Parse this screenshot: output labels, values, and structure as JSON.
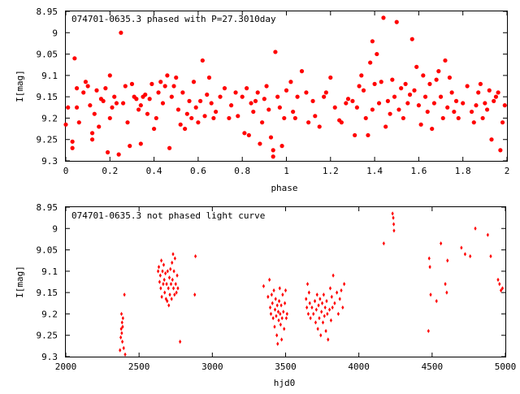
{
  "chart_data": [
    {
      "type": "scatter",
      "title": "074701-0635.3 phased with P=27.3010day",
      "xlabel": "phase",
      "ylabel": "I[mag]",
      "xlim": [
        0,
        2
      ],
      "ylim": [
        8.95,
        9.3
      ],
      "y_inverted": true,
      "grid": false,
      "marker": "filled-circle",
      "color": "#ff0000",
      "x_ticks": [
        "0",
        "0.2",
        "0.4",
        "0.6",
        "0.8",
        "1",
        "1.2",
        "1.4",
        "1.6",
        "1.8",
        "2"
      ],
      "y_ticks": [
        "8.95",
        "9",
        "9.05",
        "9.1",
        "9.15",
        "9.2",
        "9.25",
        "9.3"
      ],
      "points": [
        [
          0.0,
          9.215
        ],
        [
          0.01,
          9.175
        ],
        [
          0.03,
          9.255
        ],
        [
          0.03,
          9.27
        ],
        [
          0.04,
          9.06
        ],
        [
          0.05,
          9.13
        ],
        [
          0.05,
          9.175
        ],
        [
          0.06,
          9.21
        ],
        [
          0.08,
          9.14
        ],
        [
          0.09,
          9.115
        ],
        [
          0.1,
          9.125
        ],
        [
          0.11,
          9.17
        ],
        [
          0.12,
          9.235
        ],
        [
          0.12,
          9.25
        ],
        [
          0.13,
          9.19
        ],
        [
          0.14,
          9.135
        ],
        [
          0.15,
          9.22
        ],
        [
          0.16,
          9.155
        ],
        [
          0.17,
          9.16
        ],
        [
          0.18,
          9.13
        ],
        [
          0.19,
          9.28
        ],
        [
          0.2,
          9.1
        ],
        [
          0.2,
          9.2
        ],
        [
          0.21,
          9.175
        ],
        [
          0.22,
          9.15
        ],
        [
          0.23,
          9.165
        ],
        [
          0.24,
          9.285
        ],
        [
          0.25,
          9.0
        ],
        [
          0.26,
          9.165
        ],
        [
          0.27,
          9.125
        ],
        [
          0.28,
          9.21
        ],
        [
          0.29,
          9.265
        ],
        [
          0.3,
          9.12
        ],
        [
          0.31,
          9.15
        ],
        [
          0.32,
          9.155
        ],
        [
          0.33,
          9.18
        ],
        [
          0.34,
          9.26
        ],
        [
          0.34,
          9.17
        ],
        [
          0.35,
          9.15
        ],
        [
          0.36,
          9.145
        ],
        [
          0.37,
          9.19
        ],
        [
          0.38,
          9.155
        ],
        [
          0.39,
          9.12
        ],
        [
          0.4,
          9.225
        ],
        [
          0.41,
          9.2
        ],
        [
          0.42,
          9.14
        ],
        [
          0.43,
          9.115
        ],
        [
          0.44,
          9.165
        ],
        [
          0.45,
          9.125
        ],
        [
          0.46,
          9.1
        ],
        [
          0.47,
          9.27
        ],
        [
          0.48,
          9.15
        ],
        [
          0.49,
          9.125
        ],
        [
          0.5,
          9.105
        ],
        [
          0.51,
          9.18
        ],
        [
          0.52,
          9.215
        ],
        [
          0.53,
          9.14
        ],
        [
          0.54,
          9.225
        ],
        [
          0.55,
          9.19
        ],
        [
          0.56,
          9.16
        ],
        [
          0.57,
          9.2
        ],
        [
          0.58,
          9.115
        ],
        [
          0.59,
          9.175
        ],
        [
          0.6,
          9.21
        ],
        [
          0.61,
          9.16
        ],
        [
          0.62,
          9.065
        ],
        [
          0.63,
          9.195
        ],
        [
          0.64,
          9.145
        ],
        [
          0.65,
          9.105
        ],
        [
          0.66,
          9.165
        ],
        [
          0.67,
          9.2
        ],
        [
          0.68,
          9.185
        ],
        [
          0.7,
          9.15
        ],
        [
          0.72,
          9.13
        ],
        [
          0.74,
          9.2
        ],
        [
          0.75,
          9.17
        ],
        [
          0.77,
          9.14
        ],
        [
          0.78,
          9.195
        ],
        [
          0.8,
          9.15
        ],
        [
          0.81,
          9.235
        ],
        [
          0.82,
          9.13
        ],
        [
          0.83,
          9.24
        ],
        [
          0.84,
          9.165
        ],
        [
          0.85,
          9.185
        ],
        [
          0.86,
          9.16
        ],
        [
          0.87,
          9.14
        ],
        [
          0.88,
          9.26
        ],
        [
          0.89,
          9.21
        ],
        [
          0.9,
          9.155
        ],
        [
          0.91,
          9.125
        ],
        [
          0.92,
          9.18
        ],
        [
          0.93,
          9.245
        ],
        [
          0.94,
          9.29
        ],
        [
          0.94,
          9.275
        ],
        [
          0.95,
          9.045
        ],
        [
          0.96,
          9.15
        ],
        [
          0.97,
          9.175
        ],
        [
          0.98,
          9.265
        ],
        [
          0.99,
          9.2
        ],
        [
          1.0,
          9.135
        ],
        [
          1.02,
          9.115
        ],
        [
          1.03,
          9.185
        ],
        [
          1.04,
          9.2
        ],
        [
          1.05,
          9.15
        ],
        [
          1.07,
          9.09
        ],
        [
          1.09,
          9.14
        ],
        [
          1.1,
          9.21
        ],
        [
          1.12,
          9.16
        ],
        [
          1.13,
          9.195
        ],
        [
          1.15,
          9.22
        ],
        [
          1.17,
          9.15
        ],
        [
          1.18,
          9.14
        ],
        [
          1.2,
          9.105
        ],
        [
          1.22,
          9.175
        ],
        [
          1.24,
          9.205
        ],
        [
          1.25,
          9.21
        ],
        [
          1.27,
          9.165
        ],
        [
          1.28,
          9.155
        ],
        [
          1.3,
          9.16
        ],
        [
          1.31,
          9.24
        ],
        [
          1.32,
          9.175
        ],
        [
          1.33,
          9.125
        ],
        [
          1.34,
          9.1
        ],
        [
          1.35,
          9.135
        ],
        [
          1.36,
          9.2
        ],
        [
          1.37,
          9.24
        ],
        [
          1.38,
          9.07
        ],
        [
          1.39,
          9.02
        ],
        [
          1.39,
          9.18
        ],
        [
          1.4,
          9.12
        ],
        [
          1.41,
          9.05
        ],
        [
          1.42,
          9.165
        ],
        [
          1.43,
          9.115
        ],
        [
          1.44,
          8.965
        ],
        [
          1.45,
          9.22
        ],
        [
          1.46,
          9.16
        ],
        [
          1.47,
          9.19
        ],
        [
          1.48,
          9.11
        ],
        [
          1.49,
          9.15
        ],
        [
          1.5,
          8.975
        ],
        [
          1.51,
          9.18
        ],
        [
          1.52,
          9.13
        ],
        [
          1.53,
          9.2
        ],
        [
          1.54,
          9.12
        ],
        [
          1.55,
          9.165
        ],
        [
          1.56,
          9.145
        ],
        [
          1.57,
          9.015
        ],
        [
          1.58,
          9.135
        ],
        [
          1.59,
          9.08
        ],
        [
          1.6,
          9.17
        ],
        [
          1.61,
          9.215
        ],
        [
          1.62,
          9.1
        ],
        [
          1.63,
          9.15
        ],
        [
          1.64,
          9.185
        ],
        [
          1.65,
          9.12
        ],
        [
          1.66,
          9.225
        ],
        [
          1.67,
          9.165
        ],
        [
          1.68,
          9.11
        ],
        [
          1.69,
          9.09
        ],
        [
          1.7,
          9.15
        ],
        [
          1.71,
          9.2
        ],
        [
          1.72,
          9.065
        ],
        [
          1.73,
          9.175
        ],
        [
          1.74,
          9.105
        ],
        [
          1.75,
          9.14
        ],
        [
          1.76,
          9.185
        ],
        [
          1.77,
          9.16
        ],
        [
          1.78,
          9.2
        ],
        [
          1.8,
          9.165
        ],
        [
          1.82,
          9.125
        ],
        [
          1.84,
          9.185
        ],
        [
          1.85,
          9.21
        ],
        [
          1.86,
          9.17
        ],
        [
          1.87,
          9.14
        ],
        [
          1.88,
          9.12
        ],
        [
          1.89,
          9.2
        ],
        [
          1.9,
          9.165
        ],
        [
          1.91,
          9.18
        ],
        [
          1.92,
          9.135
        ],
        [
          1.93,
          9.25
        ],
        [
          1.94,
          9.16
        ],
        [
          1.95,
          9.15
        ],
        [
          1.96,
          9.14
        ],
        [
          1.97,
          9.275
        ],
        [
          1.98,
          9.21
        ],
        [
          1.99,
          9.17
        ]
      ]
    },
    {
      "type": "scatter",
      "title": "074701-0635.3 not phased light curve",
      "xlabel": "hjd0",
      "ylabel": "I[mag]",
      "xlim": [
        2000,
        5000
      ],
      "ylim": [
        8.95,
        9.3
      ],
      "y_inverted": true,
      "grid": false,
      "marker": "small-diamond",
      "color": "#ff0000",
      "x_ticks": [
        "2000",
        "2500",
        "3000",
        "3500",
        "4000",
        "4500",
        "5000"
      ],
      "y_ticks": [
        "8.95",
        "9",
        "9.05",
        "9.1",
        "9.15",
        "9.2",
        "9.25",
        "9.3"
      ],
      "points": [
        [
          2370,
          9.285
        ],
        [
          2375,
          9.255
        ],
        [
          2378,
          9.235
        ],
        [
          2380,
          9.2
        ],
        [
          2382,
          9.245
        ],
        [
          2384,
          9.22
        ],
        [
          2386,
          9.265
        ],
        [
          2388,
          9.23
        ],
        [
          2390,
          9.21
        ],
        [
          2395,
          9.28
        ],
        [
          2400,
          9.155
        ],
        [
          2405,
          9.295
        ],
        [
          2630,
          9.1
        ],
        [
          2635,
          9.09
        ],
        [
          2640,
          9.125
        ],
        [
          2645,
          9.11
        ],
        [
          2648,
          9.14
        ],
        [
          2652,
          9.075
        ],
        [
          2655,
          9.16
        ],
        [
          2660,
          9.1
        ],
        [
          2665,
          9.13
        ],
        [
          2668,
          9.085
        ],
        [
          2672,
          9.12
        ],
        [
          2675,
          9.15
        ],
        [
          2680,
          9.105
        ],
        [
          2684,
          9.165
        ],
        [
          2688,
          9.13
        ],
        [
          2692,
          9.17
        ],
        [
          2695,
          9.1
        ],
        [
          2700,
          9.14
        ],
        [
          2703,
          9.18
        ],
        [
          2707,
          9.115
        ],
        [
          2710,
          9.155
        ],
        [
          2714,
          9.095
        ],
        [
          2718,
          9.13
        ],
        [
          2722,
          9.165
        ],
        [
          2725,
          9.08
        ],
        [
          2728,
          9.12
        ],
        [
          2732,
          9.06
        ],
        [
          2735,
          9.14
        ],
        [
          2738,
          9.1
        ],
        [
          2742,
          9.155
        ],
        [
          2745,
          9.07
        ],
        [
          2750,
          9.13
        ],
        [
          2755,
          9.15
        ],
        [
          2760,
          9.11
        ],
        [
          2765,
          9.14
        ],
        [
          2780,
          9.265
        ],
        [
          2880,
          9.155
        ],
        [
          2885,
          9.065
        ],
        [
          3350,
          9.135
        ],
        [
          3380,
          9.16
        ],
        [
          3390,
          9.12
        ],
        [
          3395,
          9.185
        ],
        [
          3400,
          9.2
        ],
        [
          3405,
          9.155
        ],
        [
          3410,
          9.175
        ],
        [
          3415,
          9.21
        ],
        [
          3420,
          9.145
        ],
        [
          3425,
          9.23
        ],
        [
          3428,
          9.19
        ],
        [
          3432,
          9.165
        ],
        [
          3436,
          9.205
        ],
        [
          3440,
          9.25
        ],
        [
          3443,
          9.18
        ],
        [
          3446,
          9.27
        ],
        [
          3450,
          9.195
        ],
        [
          3453,
          9.215
        ],
        [
          3456,
          9.17
        ],
        [
          3460,
          9.14
        ],
        [
          3463,
          9.2
        ],
        [
          3466,
          9.225
        ],
        [
          3470,
          9.18
        ],
        [
          3473,
          9.26
        ],
        [
          3476,
          9.21
        ],
        [
          3480,
          9.155
        ],
        [
          3485,
          9.195
        ],
        [
          3490,
          9.235
        ],
        [
          3495,
          9.175
        ],
        [
          3500,
          9.145
        ],
        [
          3505,
          9.21
        ],
        [
          3510,
          9.2
        ],
        [
          3640,
          9.165
        ],
        [
          3645,
          9.185
        ],
        [
          3650,
          9.13
        ],
        [
          3655,
          9.2
        ],
        [
          3660,
          9.15
        ],
        [
          3665,
          9.175
        ],
        [
          3670,
          9.21
        ],
        [
          3680,
          9.185
        ],
        [
          3690,
          9.2
        ],
        [
          3700,
          9.17
        ],
        [
          3705,
          9.22
        ],
        [
          3710,
          9.19
        ],
        [
          3715,
          9.155
        ],
        [
          3720,
          9.235
        ],
        [
          3725,
          9.18
        ],
        [
          3730,
          9.21
        ],
        [
          3735,
          9.165
        ],
        [
          3740,
          9.25
        ],
        [
          3745,
          9.195
        ],
        [
          3750,
          9.175
        ],
        [
          3755,
          9.22
        ],
        [
          3760,
          9.155
        ],
        [
          3765,
          9.205
        ],
        [
          3770,
          9.185
        ],
        [
          3775,
          9.24
        ],
        [
          3780,
          9.17
        ],
        [
          3785,
          9.2
        ],
        [
          3790,
          9.26
        ],
        [
          3800,
          9.19
        ],
        [
          3805,
          9.14
        ],
        [
          3810,
          9.215
        ],
        [
          3815,
          9.16
        ],
        [
          3820,
          9.185
        ],
        [
          3825,
          9.11
        ],
        [
          3835,
          9.175
        ],
        [
          3850,
          9.15
        ],
        [
          3860,
          9.2
        ],
        [
          3870,
          9.165
        ],
        [
          3880,
          9.145
        ],
        [
          3890,
          9.185
        ],
        [
          3900,
          9.13
        ],
        [
          4170,
          9.035
        ],
        [
          4230,
          8.965
        ],
        [
          4235,
          8.975
        ],
        [
          4238,
          8.99
        ],
        [
          4240,
          9.005
        ],
        [
          4475,
          9.24
        ],
        [
          4480,
          9.07
        ],
        [
          4485,
          9.09
        ],
        [
          4490,
          9.155
        ],
        [
          4530,
          9.17
        ],
        [
          4560,
          9.035
        ],
        [
          4590,
          9.13
        ],
        [
          4600,
          9.15
        ],
        [
          4605,
          9.075
        ],
        [
          4700,
          9.045
        ],
        [
          4725,
          9.06
        ],
        [
          4760,
          9.065
        ],
        [
          4795,
          9.0
        ],
        [
          4880,
          9.015
        ],
        [
          4900,
          9.065
        ],
        [
          4950,
          9.12
        ],
        [
          4960,
          9.13
        ],
        [
          4970,
          9.145
        ],
        [
          4980,
          9.14
        ]
      ]
    }
  ]
}
